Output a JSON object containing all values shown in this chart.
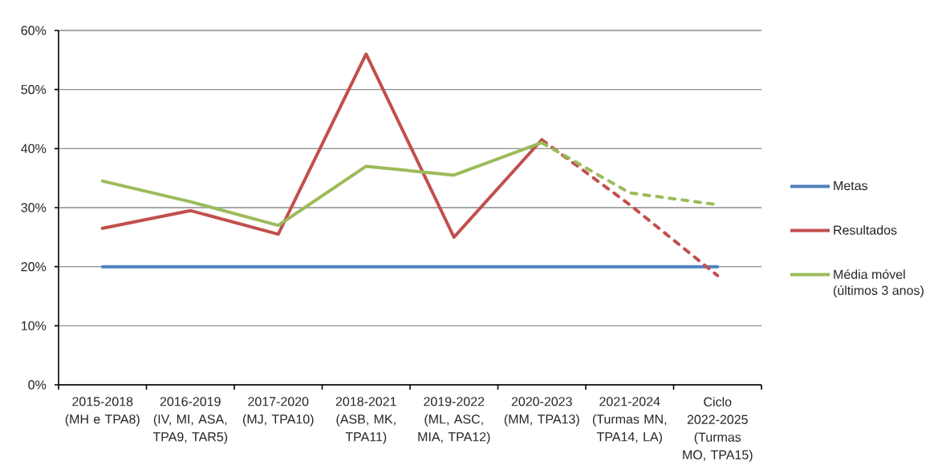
{
  "chart_data": {
    "type": "line",
    "categories": [
      "2015-2018 (MH e TPA8)",
      "2016-2019 (IV, MI, ASA, TPA9, TAR5)",
      "2017-2020 (MJ, TPA10)",
      "2018-2021 (ASB, MK, TPA11)",
      "2019-2022 (ML, ASC, MIA, TPA12)",
      "2020-2023 (MM, TPA13)",
      "2021-2024 (Turmas MN, TPA14, LA)",
      "Ciclo 2022-2025 (Turmas MO, TPA15)"
    ],
    "series": [
      {
        "name": "Metas",
        "color": "#4f81bd",
        "values": [
          20,
          20,
          20,
          20,
          20,
          20,
          20,
          20
        ]
      },
      {
        "name": "Resultados",
        "color": "#c0504d",
        "values": [
          26.5,
          29.5,
          25.5,
          56,
          25,
          41.5,
          null,
          null
        ]
      },
      {
        "color": "#c0504d",
        "line_style": "dashed",
        "values": [
          null,
          null,
          null,
          null,
          null,
          41.5,
          30.5,
          18.5
        ]
      },
      {
        "name": "Média móvel (últimos 3 anos)",
        "color": "#9bbb59",
        "values": [
          34.5,
          31,
          27,
          37,
          35.5,
          41,
          null,
          null
        ]
      },
      {
        "color": "#9bbb59",
        "line_style": "dashed",
        "values": [
          null,
          null,
          null,
          null,
          null,
          41,
          32.5,
          30.5
        ]
      }
    ],
    "ylim": [
      0,
      60
    ],
    "yticks": [
      {
        "value": 0,
        "label": "0%"
      },
      {
        "value": 10,
        "label": "10%"
      },
      {
        "value": 20,
        "label": "20%"
      },
      {
        "value": 30,
        "label": "30%"
      },
      {
        "value": 40,
        "label": "40%"
      },
      {
        "value": 50,
        "label": "50%"
      },
      {
        "value": 60,
        "label": "60%"
      }
    ],
    "grid": "y",
    "legend": "right",
    "marker": "none",
    "line_style": "solid"
  }
}
